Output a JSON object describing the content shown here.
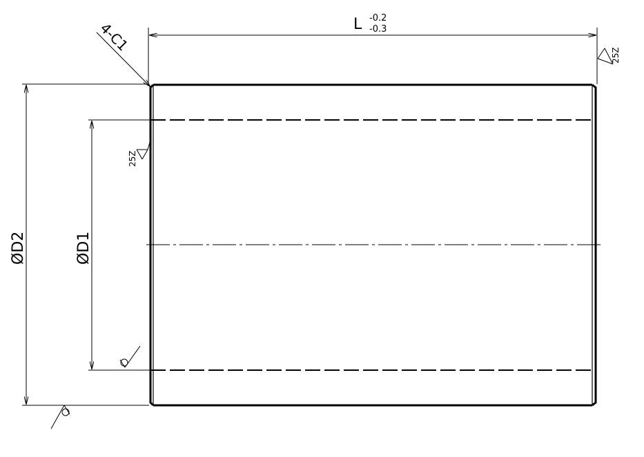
{
  "drawing": {
    "length_label": "L",
    "length_tol_upper": "-0.2",
    "length_tol_lower": "-0.3",
    "chamfer_note": "4-C1",
    "outer_diameter_label": "ØD2",
    "inner_diameter_label": "ØD1",
    "roughness_outer": "25Z",
    "roughness_inner": "25Z"
  }
}
